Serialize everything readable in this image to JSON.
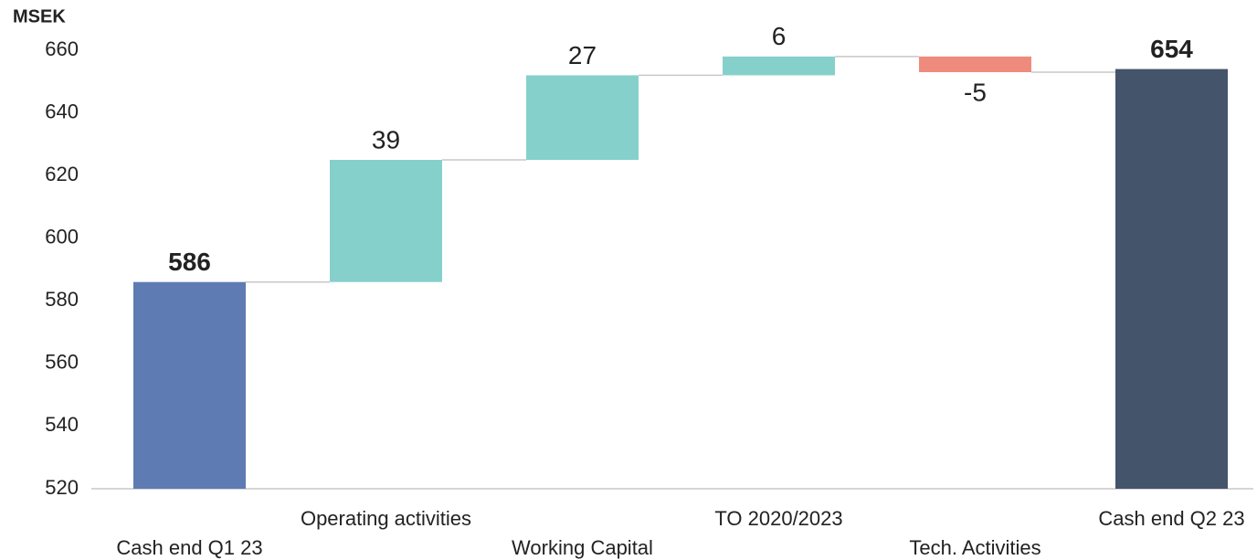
{
  "chart_data": {
    "type": "waterfall",
    "y_label": "MSEK",
    "categories": [
      "Cash end Q1 23",
      "Operating activities",
      "Working Capital",
      "TO 2020/2023",
      "Tech. Activities",
      "Cash end Q2 23"
    ],
    "values": [
      586,
      39,
      27,
      6,
      -5,
      654
    ],
    "colors": [
      "#5f7bb3",
      "#86d0cb",
      "#86d0cb",
      "#86d0cb",
      "#ef8b7c",
      "#44546a"
    ],
    "ylim": [
      520,
      660
    ],
    "yticks": [
      520,
      540,
      560,
      580,
      600,
      620,
      640,
      660
    ],
    "grid": false
  }
}
